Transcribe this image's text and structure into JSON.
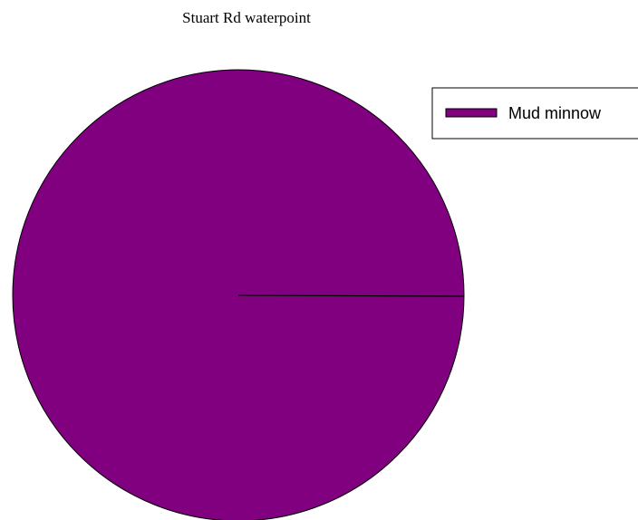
{
  "chart_data": {
    "type": "pie",
    "title": "Stuart Rd waterpoint",
    "series": [
      {
        "name": "Mud minnow",
        "value": 1,
        "color": "#800080"
      }
    ],
    "legend_position": "top-right"
  }
}
